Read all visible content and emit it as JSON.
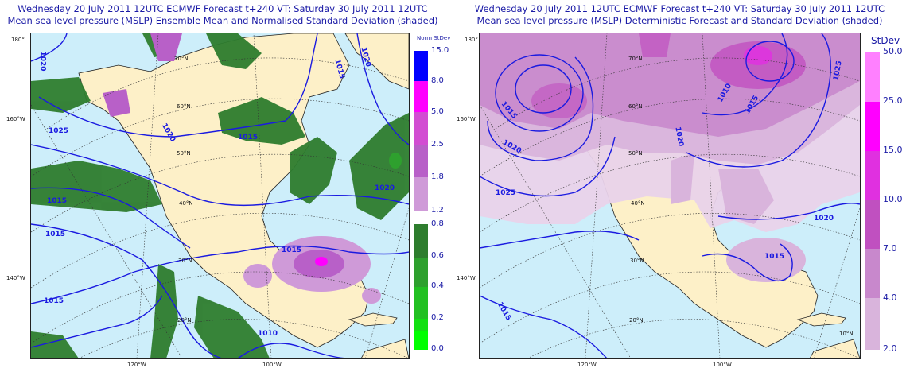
{
  "left": {
    "title_line1": "Wednesday 20 July 2011 12UTC ECMWF Forecast t+240   VT: Saturday 30 July 2011 12UTC",
    "title_line2": "Mean sea level pressure (MSLP) Ensemble Mean and Normalised Standard Deviation (shaded)",
    "legend_title": "Norm StDev",
    "legend_colors": [
      "#0000ff",
      "#ff00ff",
      "#d24dd2",
      "#b860c8",
      "#cf9ad8",
      "#2e7d2e",
      "#2ea02e",
      "#22c022",
      "#11e011",
      "#00ff00"
    ],
    "legend_ticks": [
      "15.0",
      "8.0",
      "5.0",
      "2.5",
      "1.8",
      "1.2",
      "0.8",
      "0.6",
      "0.4",
      "0.2",
      "0.0"
    ],
    "isobar_labels": [
      "1020",
      "1015",
      "1020",
      "1025",
      "1020",
      "1015",
      "1015",
      "1015",
      "1020",
      "1015",
      "1015",
      "1010"
    ],
    "lat_labels": [
      "70°N",
      "60°N",
      "50°N",
      "40°N",
      "30°N",
      "20°N"
    ],
    "lon_labels": [
      "180°",
      "160°W",
      "140°W",
      "120°W",
      "100°W"
    ]
  },
  "right": {
    "title_line1": "Wednesday 20 July 2011 12UTC ECMWF Forecast t+240   VT: Saturday 30 July 2011 12UTC",
    "title_line2": "Mean sea level pressure (MSLP) Deterministic Forecast and Standard Deviation (shaded)",
    "legend_title": "StDev",
    "legend_colors": [
      "#ff80ff",
      "#ff00ff",
      "#e030e0",
      "#c050c0",
      "#c888cc",
      "#d9b4dc",
      "#e9d2ea"
    ],
    "legend_ticks": [
      "50.0",
      "25.0",
      "15.0",
      "10.0",
      "7.0",
      "4.0",
      "2.0"
    ],
    "isobar_labels": [
      "1015",
      "1010",
      "1015",
      "1025",
      "1020",
      "1025",
      "1020",
      "1015",
      "1015",
      "1020"
    ],
    "lat_labels": [
      "70°N",
      "60°N",
      "50°N",
      "40°N",
      "30°N",
      "20°N",
      "10°N"
    ],
    "lon_labels": [
      "180°",
      "160°W",
      "140°W",
      "120°W",
      "100°W"
    ]
  }
}
